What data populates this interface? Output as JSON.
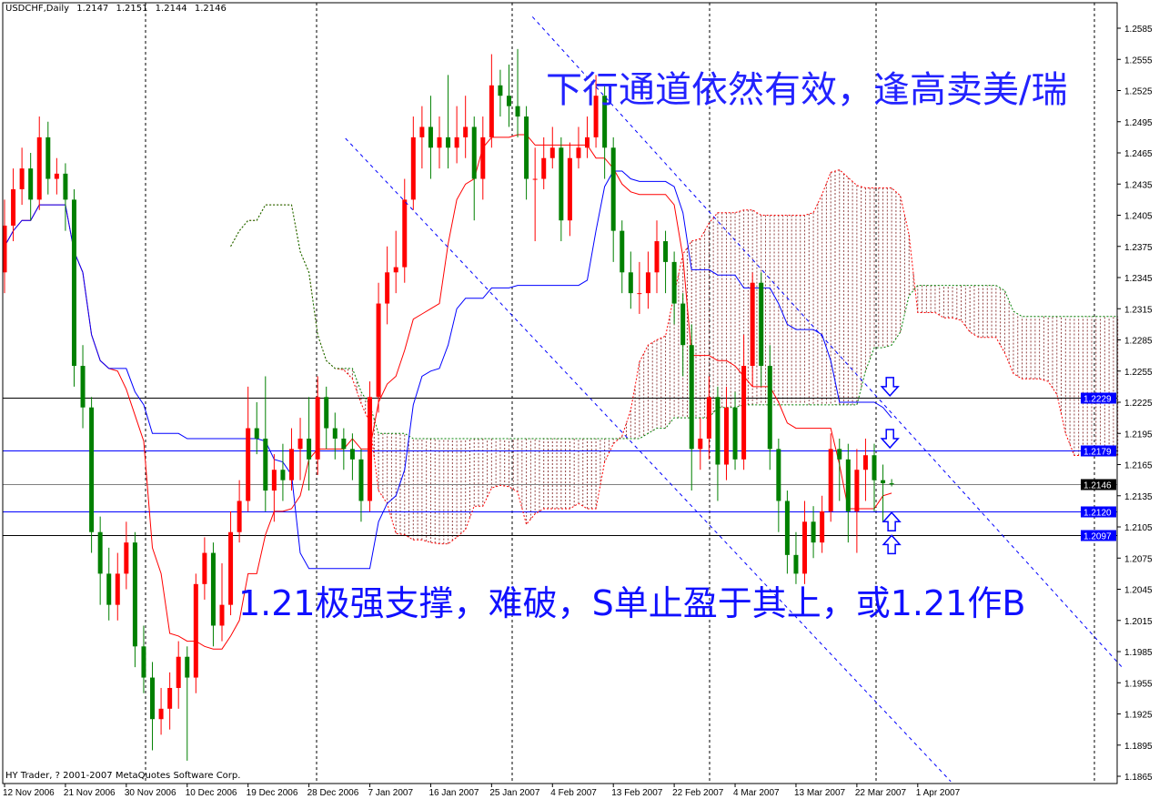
{
  "header": {
    "symbol": "USDCHF,Daily",
    "open": "1.2147",
    "high": "1.2151",
    "low": "1.2144",
    "close": "1.2146"
  },
  "footer": {
    "copyright": "HY Trader, ? 2001-2007 MetaQuotes Software Corp."
  },
  "annotations": {
    "top": "下行通道依然有效，逢高卖美/瑞",
    "bottom": "1.21极强支撑，难破，S单止盈于其上，或1.21作B"
  },
  "colors": {
    "bull": "#ff0000",
    "bear": "#008000",
    "tenkan": "#ff0000",
    "kijun": "#0000ff",
    "span_a": "#ff0000",
    "span_b": "#008000",
    "trendline": "#0000ff",
    "level_blue": "#0000ff",
    "level_black": "#000000",
    "bid": "#808080"
  },
  "chart_data": {
    "type": "candlestick",
    "symbol": "USDCHF",
    "timeframe": "Daily",
    "ylim": [
      1.186,
      1.26
    ],
    "yticks": [
      "1.2585",
      "1.2555",
      "1.2525",
      "1.2495",
      "1.2465",
      "1.2435",
      "1.2405",
      "1.2375",
      "1.2345",
      "1.2315",
      "1.2285",
      "1.2255",
      "1.2225",
      "1.2195",
      "1.2165",
      "1.2135",
      "1.2105",
      "1.2075",
      "1.2045",
      "1.2015",
      "1.1985",
      "1.1955",
      "1.1925",
      "1.1895",
      "1.1865"
    ],
    "xticks": [
      "12 Nov 2006",
      "21 Nov 2006",
      "30 Nov 2006",
      "10 Dec 2006",
      "19 Dec 2006",
      "28 Dec 2006",
      "7 Jan 2007",
      "16 Jan 2007",
      "25 Jan 2007",
      "4 Feb 2007",
      "13 Feb 2007",
      "22 Feb 2007",
      "4 Mar 2007",
      "13 Mar 2007",
      "22 Mar 2007",
      "1 Apr 2007"
    ],
    "xtick_every_bars": 7,
    "open": [
      1.235,
      1.2395,
      1.243,
      1.245,
      1.242,
      1.248,
      1.244,
      1.2445,
      1.242,
      1.226,
      1.222,
      1.21,
      1.206,
      1.203,
      1.206,
      1.209,
      1.199,
      1.196,
      1.192,
      1.193,
      1.195,
      1.198,
      1.196,
      1.205,
      1.208,
      1.201,
      1.203,
      1.21,
      1.213,
      1.22,
      1.219,
      1.214,
      1.216,
      1.215,
      1.218,
      1.219,
      1.217,
      1.223,
      1.22,
      1.219,
      1.218,
      1.217,
      1.213,
      1.223,
      1.232,
      1.235,
      1.2355,
      1.242,
      1.248,
      1.249,
      1.247,
      1.248,
      1.247,
      1.248,
      1.249,
      1.244,
      1.248,
      1.253,
      1.252,
      1.251,
      1.25,
      1.244,
      1.244,
      1.246,
      1.247,
      1.24,
      1.246,
      1.247,
      1.248,
      1.252,
      1.247,
      1.239,
      1.235,
      1.233,
      1.233,
      1.235,
      1.238,
      1.236,
      1.232,
      1.228,
      1.218,
      1.219,
      1.223,
      1.2165,
      1.222,
      1.217,
      1.226,
      1.234,
      1.226,
      1.218,
      1.213,
      1.2078,
      1.206,
      1.211,
      1.209,
      1.212,
      1.218,
      1.217,
      1.212,
      1.216,
      1.2174,
      1.215,
      1.2147
    ],
    "high": [
      1.242,
      1.245,
      1.247,
      1.2465,
      1.25,
      1.2495,
      1.246,
      1.2455,
      1.243,
      1.228,
      1.223,
      1.2115,
      1.2085,
      1.208,
      1.211,
      1.21,
      1.201,
      1.1975,
      1.195,
      1.1965,
      1.1995,
      1.199,
      1.206,
      1.2095,
      1.209,
      1.207,
      1.212,
      1.215,
      1.224,
      1.2225,
      1.225,
      1.2175,
      1.2185,
      1.22,
      1.221,
      1.223,
      1.225,
      1.224,
      1.2215,
      1.22,
      1.2195,
      1.218,
      1.2245,
      1.234,
      1.2375,
      1.239,
      1.244,
      1.25,
      1.251,
      1.252,
      1.25,
      1.254,
      1.251,
      1.252,
      1.25,
      1.25,
      1.256,
      1.2545,
      1.255,
      1.2565,
      1.251,
      1.247,
      1.248,
      1.249,
      1.248,
      1.2475,
      1.249,
      1.25,
      1.254,
      1.253,
      1.248,
      1.24,
      1.237,
      1.236,
      1.237,
      1.24,
      1.239,
      1.237,
      1.233,
      1.23,
      1.221,
      1.225,
      1.224,
      1.224,
      1.2235,
      1.229,
      1.235,
      1.235,
      1.228,
      1.219,
      1.214,
      1.21,
      1.213,
      1.2125,
      1.2135,
      1.2195,
      1.219,
      1.2185,
      1.218,
      1.219,
      1.2185,
      1.2165,
      1.2151
    ],
    "low": [
      1.233,
      1.238,
      1.2415,
      1.24,
      1.241,
      1.2425,
      1.2425,
      1.239,
      1.224,
      1.22,
      1.208,
      1.203,
      1.2015,
      1.2015,
      1.2045,
      1.197,
      1.1945,
      1.189,
      1.1905,
      1.191,
      1.193,
      1.188,
      1.1945,
      1.2035,
      1.199,
      1.1995,
      1.202,
      1.209,
      1.212,
      1.2175,
      1.212,
      1.211,
      1.213,
      1.214,
      1.215,
      1.214,
      1.2155,
      1.218,
      1.217,
      1.216,
      1.215,
      1.211,
      1.212,
      1.2215,
      1.23,
      1.233,
      1.234,
      1.241,
      1.245,
      1.244,
      1.245,
      1.245,
      1.2455,
      1.246,
      1.24,
      1.242,
      1.247,
      1.25,
      1.249,
      1.248,
      1.242,
      1.238,
      1.243,
      1.245,
      1.238,
      1.2385,
      1.245,
      1.246,
      1.247,
      1.244,
      1.236,
      1.233,
      1.2315,
      1.231,
      1.2315,
      1.233,
      1.233,
      1.23,
      1.225,
      1.214,
      1.216,
      1.217,
      1.213,
      1.215,
      1.216,
      1.216,
      1.224,
      1.224,
      1.216,
      1.21,
      1.206,
      1.205,
      1.205,
      1.2075,
      1.208,
      1.211,
      1.213,
      1.209,
      1.208,
      1.213,
      1.212,
      1.211,
      1.2144
    ],
    "close": [
      1.2395,
      1.243,
      1.245,
      1.242,
      1.248,
      1.244,
      1.2445,
      1.242,
      1.226,
      1.222,
      1.21,
      1.206,
      1.203,
      1.206,
      1.209,
      1.199,
      1.196,
      1.192,
      1.193,
      1.195,
      1.198,
      1.196,
      1.205,
      1.208,
      1.201,
      1.203,
      1.21,
      1.213,
      1.22,
      1.219,
      1.214,
      1.216,
      1.215,
      1.218,
      1.219,
      1.217,
      1.223,
      1.22,
      1.219,
      1.218,
      1.217,
      1.213,
      1.223,
      1.232,
      1.235,
      1.2355,
      1.242,
      1.248,
      1.249,
      1.247,
      1.248,
      1.247,
      1.248,
      1.249,
      1.244,
      1.248,
      1.253,
      1.252,
      1.251,
      1.25,
      1.244,
      1.244,
      1.246,
      1.247,
      1.24,
      1.246,
      1.247,
      1.248,
      1.252,
      1.247,
      1.239,
      1.235,
      1.233,
      1.233,
      1.235,
      1.238,
      1.236,
      1.232,
      1.228,
      1.218,
      1.219,
      1.223,
      1.2165,
      1.222,
      1.217,
      1.226,
      1.234,
      1.226,
      1.218,
      1.213,
      1.2078,
      1.206,
      1.211,
      1.209,
      1.212,
      1.218,
      1.217,
      1.212,
      1.216,
      1.2174,
      1.215,
      1.2147,
      1.2146
    ],
    "indicator": {
      "name": "Ichimoku Kinko Hyo",
      "tenkan_period": 9,
      "kijun_period": 26,
      "senkou_b_period": 52,
      "shift": 26
    },
    "levels": [
      {
        "price": 1.2229,
        "label": "1.2229",
        "color": "#000000",
        "label_bg": "#0000ff"
      },
      {
        "price": 1.2179,
        "label": "1.2179",
        "color": "#0000ff",
        "label_bg": "#0000ff"
      },
      {
        "price": 1.2146,
        "label": "1.2146",
        "color": "#808080",
        "label_bg": "#000000"
      },
      {
        "price": 1.212,
        "label": "1.2120",
        "color": "#0000ff",
        "label_bg": "#0000ff"
      },
      {
        "price": 1.2097,
        "label": "1.2097",
        "color": "#000000",
        "label_bg": "#0000ff"
      }
    ],
    "trendlines": [
      {
        "from": {
          "bar": 60.7,
          "price": 1.2596
        },
        "to": {
          "bar": 128.7,
          "price": 1.1968
        }
      },
      {
        "from": {
          "bar": 39.2,
          "price": 1.2479
        },
        "to": {
          "bar": 108.8,
          "price": 1.186
        }
      }
    ],
    "arrows": [
      {
        "bar": 101.8,
        "price": 1.224,
        "direction": "down"
      },
      {
        "bar": 101.8,
        "price": 1.219,
        "direction": "down"
      },
      {
        "bar": 102,
        "price": 1.211,
        "direction": "up"
      },
      {
        "bar": 102,
        "price": 1.2088,
        "direction": "up"
      }
    ]
  }
}
